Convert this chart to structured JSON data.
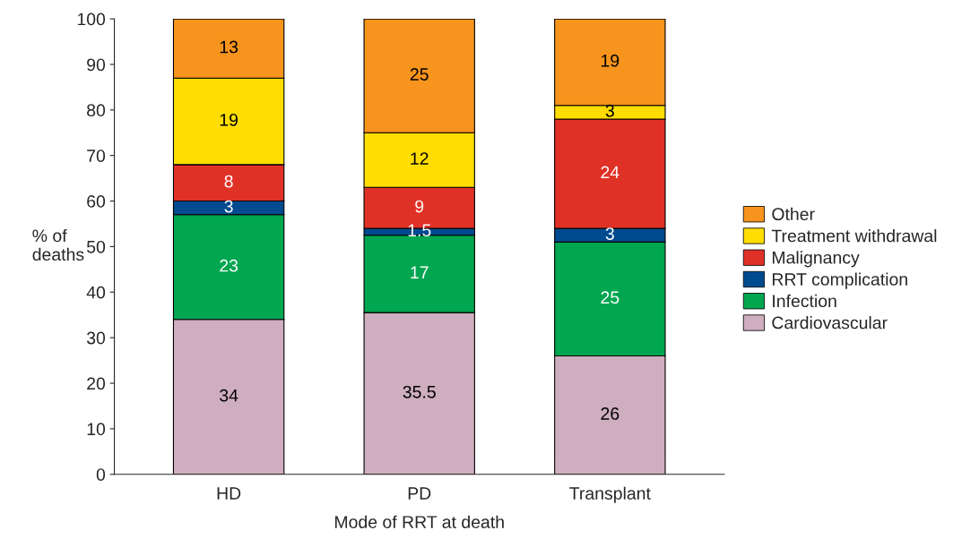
{
  "chart_data": {
    "type": "bar",
    "stacked": true,
    "xlabel": "Mode of RRT at death",
    "ylabel": "% of\ndeaths",
    "categories": [
      "HD",
      "PD",
      "Transplant"
    ],
    "series": [
      {
        "name": "Cardiovascular",
        "color": "#cfaebf",
        "values": [
          34,
          35.5,
          26
        ]
      },
      {
        "name": "Infection",
        "color": "#00a650",
        "values": [
          23,
          17,
          25
        ]
      },
      {
        "name": "RRT complication",
        "color": "#004a8f",
        "values": [
          3,
          1.5,
          3
        ]
      },
      {
        "name": "Malignancy",
        "color": "#e03127",
        "values": [
          8,
          9,
          24
        ]
      },
      {
        "name": "Treatment withdrawal",
        "color": "#ffdd00",
        "values": [
          19,
          12,
          3
        ]
      },
      {
        "name": "Other",
        "color": "#f7941d",
        "values": [
          13,
          25,
          19
        ]
      }
    ],
    "ylim": [
      0,
      100
    ],
    "yticks": [
      0,
      10,
      20,
      30,
      40,
      50,
      60,
      70,
      80,
      90,
      100
    ],
    "data_labels": true,
    "legend": "right",
    "grid": false
  }
}
